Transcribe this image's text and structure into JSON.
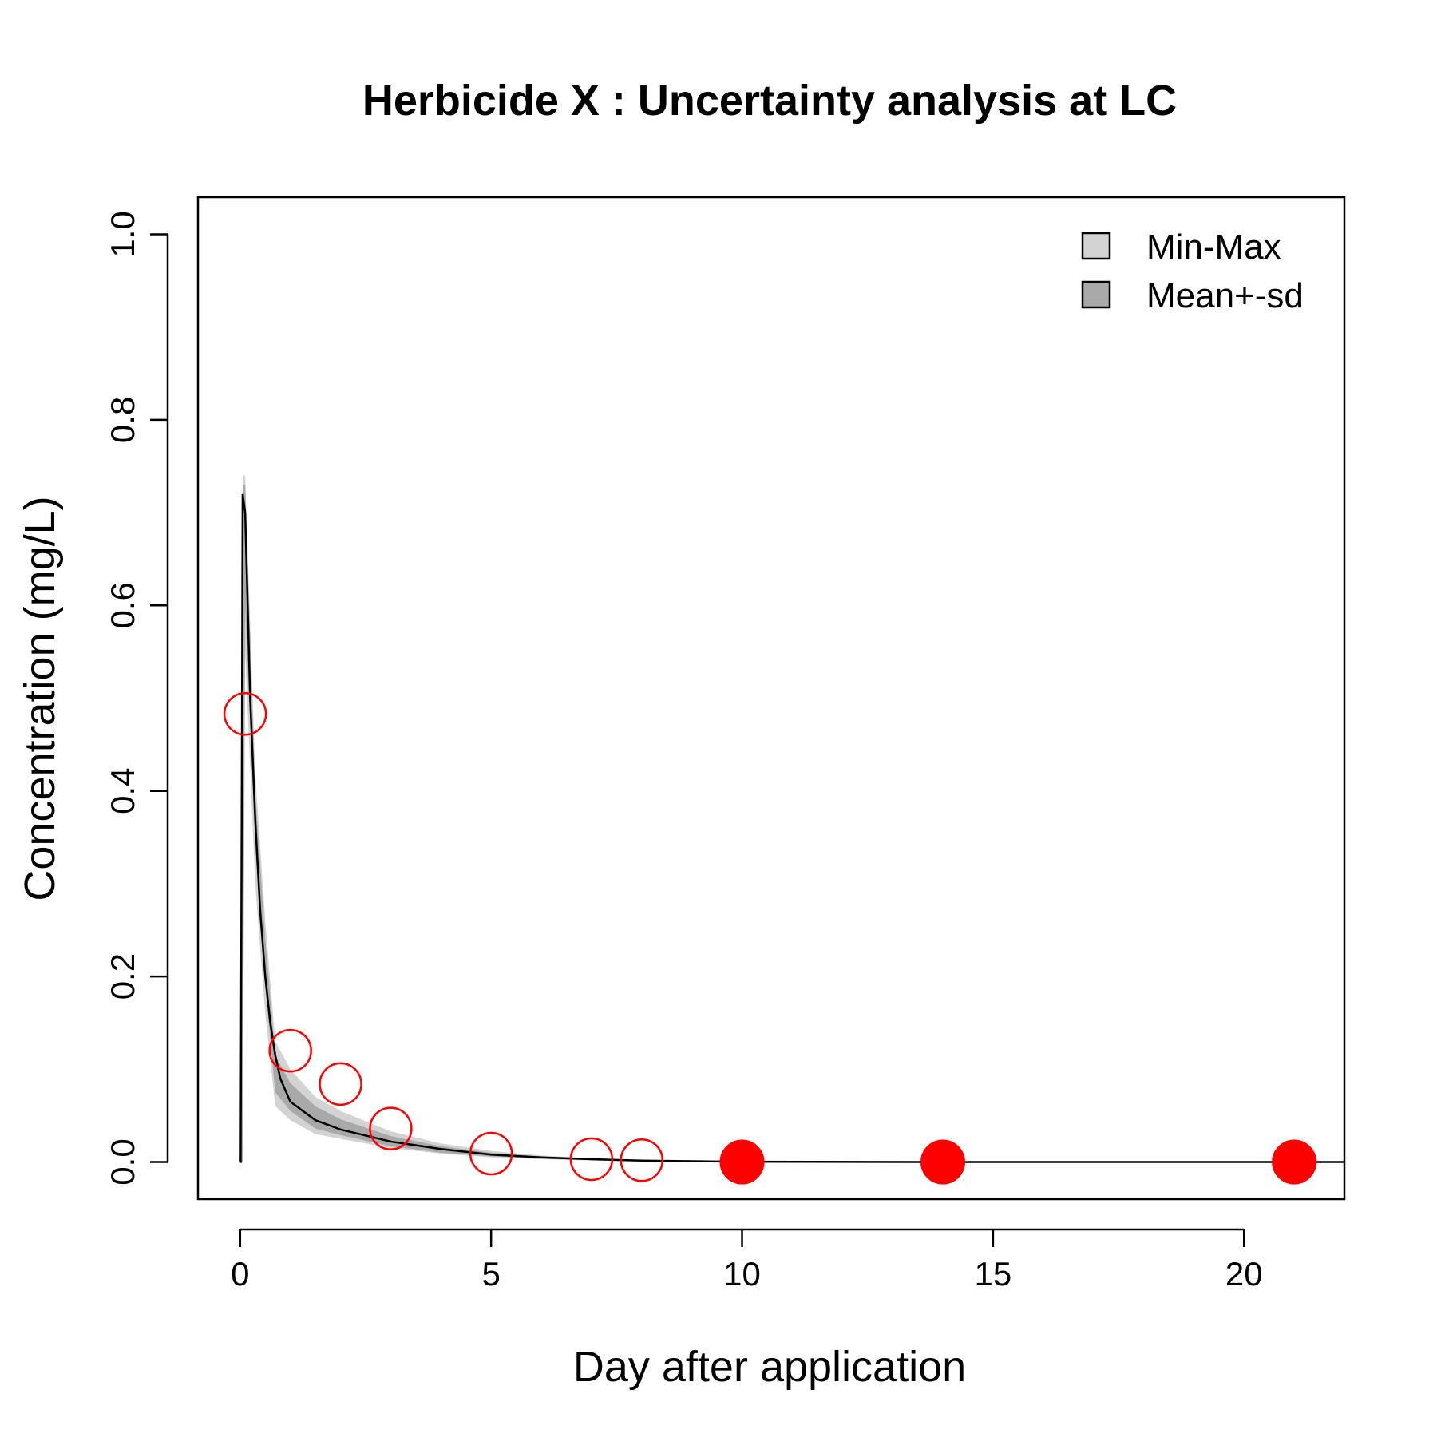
{
  "chart_data": {
    "type": "line",
    "title": "Herbicide X : Uncertainty analysis at  LC",
    "xlabel": "Day after application",
    "ylabel": "Concentration (mg/L)",
    "xlim": [
      -0.84,
      22.0
    ],
    "ylim": [
      -0.04,
      1.04
    ],
    "xticks": [
      0,
      5,
      10,
      15,
      20
    ],
    "xtick_labels": [
      "0",
      "5",
      "10",
      "15",
      "20"
    ],
    "yticks": [
      0.0,
      0.2,
      0.4,
      0.6,
      0.8,
      1.0
    ],
    "ytick_labels": [
      "0.0",
      "0.2",
      "0.4",
      "0.6",
      "0.8",
      "1.0"
    ],
    "grid": false,
    "legend_position": "top-right",
    "legend": [
      {
        "label": "Min-Max",
        "color": "#d3d3d3"
      },
      {
        "label": "Mean+-sd",
        "color": "#a9a9a9"
      }
    ],
    "series": [
      {
        "role": "min-max-band",
        "color": "#d3d3d3",
        "x": [
          0,
          0.05,
          0.1,
          0.3,
          0.5,
          0.7,
          1.0,
          1.5,
          2.0,
          3.0,
          4.0,
          5.0,
          6.0,
          7.0,
          8.0,
          8.6
        ],
        "lower": [
          0,
          0,
          0.55,
          0.3,
          0.16,
          0.06,
          0.045,
          0.03,
          0.025,
          0.015,
          0.009,
          0.005,
          0.003,
          0.0015,
          0.0005,
          0
        ],
        "upper": [
          0,
          0.74,
          0.74,
          0.42,
          0.26,
          0.13,
          0.1,
          0.07,
          0.055,
          0.033,
          0.02,
          0.012,
          0.007,
          0.004,
          0.002,
          0.001
        ]
      },
      {
        "role": "mean-sd-band",
        "color": "#a9a9a9",
        "x": [
          0,
          0.05,
          0.1,
          0.3,
          0.5,
          0.7,
          1.0,
          1.5,
          2.0,
          3.0,
          4.0,
          5.0,
          6.0,
          7.0,
          8.0,
          8.6
        ],
        "lower": [
          0,
          0,
          0.6,
          0.34,
          0.19,
          0.075,
          0.055,
          0.036,
          0.029,
          0.017,
          0.01,
          0.006,
          0.0035,
          0.002,
          0.0008,
          0
        ],
        "upper": [
          0,
          0.73,
          0.73,
          0.4,
          0.24,
          0.115,
          0.085,
          0.06,
          0.046,
          0.028,
          0.017,
          0.01,
          0.006,
          0.0035,
          0.0015,
          0.0008
        ]
      },
      {
        "role": "mean-line",
        "color": "#000000",
        "x": [
          0,
          0.01,
          0.05,
          0.1,
          0.2,
          0.3,
          0.4,
          0.5,
          0.6,
          0.7,
          0.8,
          1.0,
          1.5,
          2.0,
          3.0,
          4.0,
          5.0,
          6.0,
          7.0,
          8.0,
          10.0,
          14.0,
          21.0,
          22.0
        ],
        "y": [
          0,
          0,
          0.72,
          0.7,
          0.5,
          0.37,
          0.27,
          0.2,
          0.15,
          0.115,
          0.09,
          0.065,
          0.045,
          0.035,
          0.022,
          0.014,
          0.008,
          0.005,
          0.003,
          0.0015,
          0.0003,
          0,
          0,
          0
        ]
      },
      {
        "role": "observed",
        "style": "open-circle",
        "color": "#ff0000",
        "x": [
          0.1,
          1,
          2,
          3,
          5,
          7,
          8
        ],
        "y": [
          0.483,
          0.12,
          0.084,
          0.036,
          0.009,
          0.003,
          0.002
        ]
      },
      {
        "role": "observed-below-limit",
        "style": "filled-circle",
        "color": "#ff0000",
        "x": [
          10,
          14,
          21
        ],
        "y": [
          0,
          0,
          0
        ]
      }
    ]
  }
}
